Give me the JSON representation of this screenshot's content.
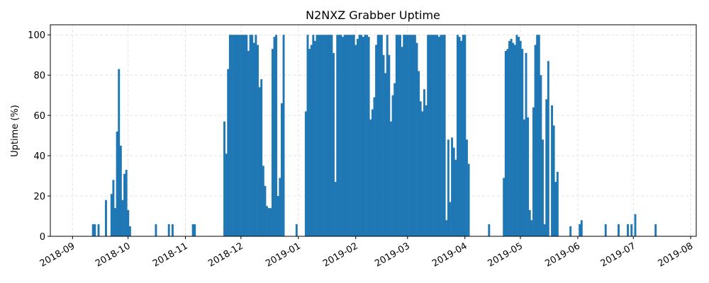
{
  "chart_data": {
    "type": "bar",
    "title": "N2NXZ Grabber Uptime",
    "xlabel": "",
    "ylabel": "Uptime (%)",
    "xlim": [
      "2018-08-20",
      "2019-08-04"
    ],
    "ylim": [
      0,
      105
    ],
    "grid": true,
    "colors": {
      "bar": "#1f77b4"
    },
    "x_ticks": [
      "2018-09",
      "2018-10",
      "2018-11",
      "2018-12",
      "2019-01",
      "2019-02",
      "2019-03",
      "2019-04",
      "2019-05",
      "2019-06",
      "2019-07",
      "2019-08"
    ],
    "x_tick_dates": [
      "2018-09-01",
      "2018-10-01",
      "2018-11-01",
      "2018-12-01",
      "2019-01-01",
      "2019-02-01",
      "2019-03-01",
      "2019-04-01",
      "2019-05-01",
      "2019-06-01",
      "2019-07-01",
      "2019-08-01"
    ],
    "y_ticks": [
      0,
      20,
      40,
      60,
      80,
      100
    ],
    "points": [
      {
        "date": "2018-09-12",
        "value": 6
      },
      {
        "date": "2018-09-13",
        "value": 6
      },
      {
        "date": "2018-09-15",
        "value": 6
      },
      {
        "date": "2018-09-19",
        "value": 18
      },
      {
        "date": "2018-09-22",
        "value": 21
      },
      {
        "date": "2018-09-23",
        "value": 28
      },
      {
        "date": "2018-09-24",
        "value": 14
      },
      {
        "date": "2018-09-25",
        "value": 52
      },
      {
        "date": "2018-09-26",
        "value": 83
      },
      {
        "date": "2018-09-27",
        "value": 45
      },
      {
        "date": "2018-09-28",
        "value": 18
      },
      {
        "date": "2018-09-29",
        "value": 31
      },
      {
        "date": "2018-09-30",
        "value": 33
      },
      {
        "date": "2018-10-01",
        "value": 13
      },
      {
        "date": "2018-10-02",
        "value": 5
      },
      {
        "date": "2018-10-16",
        "value": 6
      },
      {
        "date": "2018-10-23",
        "value": 6
      },
      {
        "date": "2018-10-25",
        "value": 6
      },
      {
        "date": "2018-11-05",
        "value": 6
      },
      {
        "date": "2018-11-06",
        "value": 6
      },
      {
        "date": "2018-11-22",
        "value": 57
      },
      {
        "date": "2018-11-23",
        "value": 41
      },
      {
        "date": "2018-11-24",
        "value": 83
      },
      {
        "date": "2018-11-25",
        "value": 100
      },
      {
        "date": "2018-11-26",
        "value": 100
      },
      {
        "date": "2018-11-27",
        "value": 100
      },
      {
        "date": "2018-11-28",
        "value": 100
      },
      {
        "date": "2018-11-29",
        "value": 100
      },
      {
        "date": "2018-11-30",
        "value": 100
      },
      {
        "date": "2018-12-01",
        "value": 100
      },
      {
        "date": "2018-12-02",
        "value": 100
      },
      {
        "date": "2018-12-03",
        "value": 100
      },
      {
        "date": "2018-12-04",
        "value": 100
      },
      {
        "date": "2018-12-05",
        "value": 92
      },
      {
        "date": "2018-12-06",
        "value": 100
      },
      {
        "date": "2018-12-07",
        "value": 100
      },
      {
        "date": "2018-12-08",
        "value": 96
      },
      {
        "date": "2018-12-09",
        "value": 100
      },
      {
        "date": "2018-12-10",
        "value": 95
      },
      {
        "date": "2018-12-11",
        "value": 74
      },
      {
        "date": "2018-12-12",
        "value": 78
      },
      {
        "date": "2018-12-13",
        "value": 35
      },
      {
        "date": "2018-12-14",
        "value": 25
      },
      {
        "date": "2018-12-15",
        "value": 15
      },
      {
        "date": "2018-12-16",
        "value": 14
      },
      {
        "date": "2018-12-17",
        "value": 14
      },
      {
        "date": "2018-12-18",
        "value": 93
      },
      {
        "date": "2018-12-19",
        "value": 99
      },
      {
        "date": "2018-12-20",
        "value": 100
      },
      {
        "date": "2018-12-21",
        "value": 20
      },
      {
        "date": "2018-12-22",
        "value": 29
      },
      {
        "date": "2018-12-23",
        "value": 66
      },
      {
        "date": "2018-12-24",
        "value": 100
      },
      {
        "date": "2018-12-31",
        "value": 6
      },
      {
        "date": "2019-01-05",
        "value": 62
      },
      {
        "date": "2019-01-06",
        "value": 100
      },
      {
        "date": "2019-01-07",
        "value": 93
      },
      {
        "date": "2019-01-08",
        "value": 95
      },
      {
        "date": "2019-01-09",
        "value": 100
      },
      {
        "date": "2019-01-10",
        "value": 97
      },
      {
        "date": "2019-01-11",
        "value": 100
      },
      {
        "date": "2019-01-12",
        "value": 100
      },
      {
        "date": "2019-01-13",
        "value": 100
      },
      {
        "date": "2019-01-14",
        "value": 100
      },
      {
        "date": "2019-01-15",
        "value": 100
      },
      {
        "date": "2019-01-16",
        "value": 100
      },
      {
        "date": "2019-01-17",
        "value": 100
      },
      {
        "date": "2019-01-18",
        "value": 100
      },
      {
        "date": "2019-01-19",
        "value": 100
      },
      {
        "date": "2019-01-20",
        "value": 91
      },
      {
        "date": "2019-01-21",
        "value": 27
      },
      {
        "date": "2019-01-22",
        "value": 100
      },
      {
        "date": "2019-01-23",
        "value": 100
      },
      {
        "date": "2019-01-24",
        "value": 100
      },
      {
        "date": "2019-01-25",
        "value": 99
      },
      {
        "date": "2019-01-26",
        "value": 100
      },
      {
        "date": "2019-01-27",
        "value": 100
      },
      {
        "date": "2019-01-28",
        "value": 100
      },
      {
        "date": "2019-01-29",
        "value": 100
      },
      {
        "date": "2019-01-30",
        "value": 100
      },
      {
        "date": "2019-01-31",
        "value": 100
      },
      {
        "date": "2019-02-01",
        "value": 95
      },
      {
        "date": "2019-02-02",
        "value": 98
      },
      {
        "date": "2019-02-03",
        "value": 100
      },
      {
        "date": "2019-02-04",
        "value": 100
      },
      {
        "date": "2019-02-05",
        "value": 99
      },
      {
        "date": "2019-02-06",
        "value": 100
      },
      {
        "date": "2019-02-07",
        "value": 100
      },
      {
        "date": "2019-02-08",
        "value": 99
      },
      {
        "date": "2019-02-09",
        "value": 58
      },
      {
        "date": "2019-02-10",
        "value": 63
      },
      {
        "date": "2019-02-11",
        "value": 69
      },
      {
        "date": "2019-02-12",
        "value": 95
      },
      {
        "date": "2019-02-13",
        "value": 100
      },
      {
        "date": "2019-02-14",
        "value": 100
      },
      {
        "date": "2019-02-15",
        "value": 100
      },
      {
        "date": "2019-02-16",
        "value": 90
      },
      {
        "date": "2019-02-17",
        "value": 81
      },
      {
        "date": "2019-02-18",
        "value": 100
      },
      {
        "date": "2019-02-19",
        "value": 90
      },
      {
        "date": "2019-02-20",
        "value": 57
      },
      {
        "date": "2019-02-21",
        "value": 70
      },
      {
        "date": "2019-02-22",
        "value": 76
      },
      {
        "date": "2019-02-23",
        "value": 100
      },
      {
        "date": "2019-02-24",
        "value": 100
      },
      {
        "date": "2019-02-25",
        "value": 100
      },
      {
        "date": "2019-02-26",
        "value": 94
      },
      {
        "date": "2019-02-27",
        "value": 100
      },
      {
        "date": "2019-02-28",
        "value": 100
      },
      {
        "date": "2019-03-01",
        "value": 100
      },
      {
        "date": "2019-03-02",
        "value": 100
      },
      {
        "date": "2019-03-03",
        "value": 100
      },
      {
        "date": "2019-03-04",
        "value": 100
      },
      {
        "date": "2019-03-05",
        "value": 100
      },
      {
        "date": "2019-03-06",
        "value": 96
      },
      {
        "date": "2019-03-07",
        "value": 82
      },
      {
        "date": "2019-03-08",
        "value": 67
      },
      {
        "date": "2019-03-09",
        "value": 62
      },
      {
        "date": "2019-03-10",
        "value": 73
      },
      {
        "date": "2019-03-11",
        "value": 65
      },
      {
        "date": "2019-03-12",
        "value": 100
      },
      {
        "date": "2019-03-13",
        "value": 100
      },
      {
        "date": "2019-03-14",
        "value": 100
      },
      {
        "date": "2019-03-15",
        "value": 100
      },
      {
        "date": "2019-03-16",
        "value": 100
      },
      {
        "date": "2019-03-17",
        "value": 100
      },
      {
        "date": "2019-03-18",
        "value": 99
      },
      {
        "date": "2019-03-19",
        "value": 100
      },
      {
        "date": "2019-03-20",
        "value": 100
      },
      {
        "date": "2019-03-21",
        "value": 100
      },
      {
        "date": "2019-03-22",
        "value": 8
      },
      {
        "date": "2019-03-23",
        "value": 48
      },
      {
        "date": "2019-03-24",
        "value": 17
      },
      {
        "date": "2019-03-25",
        "value": 49
      },
      {
        "date": "2019-03-26",
        "value": 44
      },
      {
        "date": "2019-03-27",
        "value": 38
      },
      {
        "date": "2019-03-28",
        "value": 100
      },
      {
        "date": "2019-03-29",
        "value": 99
      },
      {
        "date": "2019-03-30",
        "value": 97
      },
      {
        "date": "2019-03-31",
        "value": 100
      },
      {
        "date": "2019-04-01",
        "value": 100
      },
      {
        "date": "2019-04-02",
        "value": 48
      },
      {
        "date": "2019-04-03",
        "value": 36
      },
      {
        "date": "2019-04-14",
        "value": 6
      },
      {
        "date": "2019-04-22",
        "value": 29
      },
      {
        "date": "2019-04-23",
        "value": 92
      },
      {
        "date": "2019-04-24",
        "value": 93
      },
      {
        "date": "2019-04-25",
        "value": 97
      },
      {
        "date": "2019-04-26",
        "value": 98
      },
      {
        "date": "2019-04-27",
        "value": 96
      },
      {
        "date": "2019-04-28",
        "value": 95
      },
      {
        "date": "2019-04-29",
        "value": 100
      },
      {
        "date": "2019-04-30",
        "value": 99
      },
      {
        "date": "2019-05-01",
        "value": 97
      },
      {
        "date": "2019-05-02",
        "value": 93
      },
      {
        "date": "2019-05-03",
        "value": 58
      },
      {
        "date": "2019-05-04",
        "value": 91
      },
      {
        "date": "2019-05-05",
        "value": 59
      },
      {
        "date": "2019-05-06",
        "value": 13
      },
      {
        "date": "2019-05-07",
        "value": 8
      },
      {
        "date": "2019-05-08",
        "value": 64
      },
      {
        "date": "2019-05-09",
        "value": 95
      },
      {
        "date": "2019-05-10",
        "value": 100
      },
      {
        "date": "2019-05-11",
        "value": 100
      },
      {
        "date": "2019-05-12",
        "value": 80
      },
      {
        "date": "2019-05-13",
        "value": 48
      },
      {
        "date": "2019-05-14",
        "value": 6
      },
      {
        "date": "2019-05-15",
        "value": 68
      },
      {
        "date": "2019-05-16",
        "value": 87
      },
      {
        "date": "2019-05-18",
        "value": 65
      },
      {
        "date": "2019-05-19",
        "value": 55
      },
      {
        "date": "2019-05-20",
        "value": 27
      },
      {
        "date": "2019-05-21",
        "value": 32
      },
      {
        "date": "2019-05-28",
        "value": 5
      },
      {
        "date": "2019-06-02",
        "value": 6
      },
      {
        "date": "2019-06-03",
        "value": 8
      },
      {
        "date": "2019-06-16",
        "value": 6
      },
      {
        "date": "2019-06-23",
        "value": 6
      },
      {
        "date": "2019-06-28",
        "value": 6
      },
      {
        "date": "2019-06-30",
        "value": 6
      },
      {
        "date": "2019-07-02",
        "value": 11
      },
      {
        "date": "2019-07-13",
        "value": 6
      }
    ]
  }
}
